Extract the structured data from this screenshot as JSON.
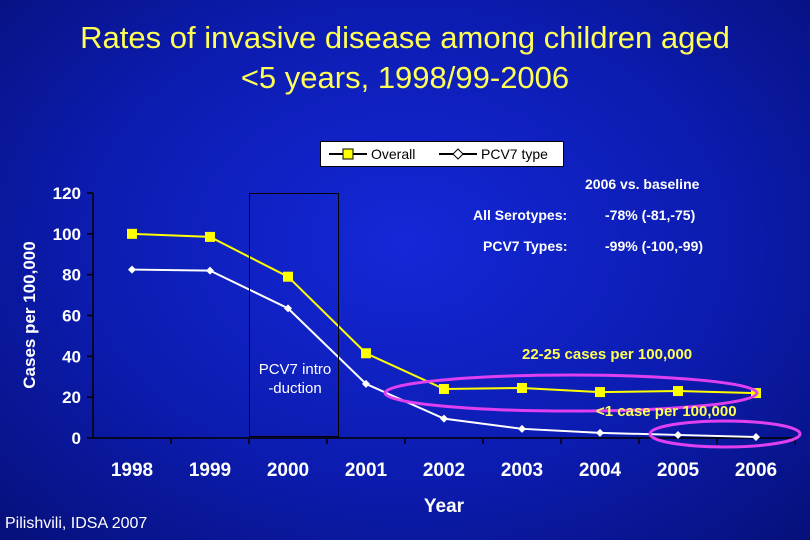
{
  "title_lines": [
    "Rates of invasive disease among children aged",
    "<5 years, 1998/99-2006"
  ],
  "source": "Pilishvili, IDSA 2007",
  "intro_label": "PCV7 intro\n-duction",
  "notes": {
    "heading": "2006 vs. baseline",
    "all_label": "All Serotypes:",
    "all_value": "-78% (-81,-75)",
    "pcv7_label": "PCV7 Types:",
    "pcv7_value": "-99% (-100,-99)",
    "band_overall": "22-25 cases per 100,000",
    "band_pcv7": "<1 case per 100,000"
  },
  "colors": {
    "overall": "#ffff00",
    "pcv7": "#ffffff",
    "ellipse": "#e040f0",
    "title": "#ffff55"
  },
  "chart_data": {
    "type": "line",
    "xlabel": "Year",
    "ylabel": "Cases per 100,000",
    "x": [
      "1998",
      "1999",
      "2000",
      "2001",
      "2002",
      "2003",
      "2004",
      "2005",
      "2006"
    ],
    "ylim": [
      0,
      120
    ],
    "yticks": [
      "0",
      "20",
      "40",
      "60",
      "80",
      "100",
      "120"
    ],
    "legend_position": "top",
    "grid": false,
    "series": [
      {
        "name": "Overall",
        "marker": "square",
        "values": [
          100,
          98.5,
          79,
          41.5,
          24,
          24.5,
          22.5,
          23,
          22
        ]
      },
      {
        "name": "PCV7 type",
        "marker": "diamond",
        "values": [
          82.5,
          82,
          63.5,
          26.5,
          9.5,
          4.5,
          2.5,
          1.5,
          0.5
        ]
      }
    ]
  }
}
